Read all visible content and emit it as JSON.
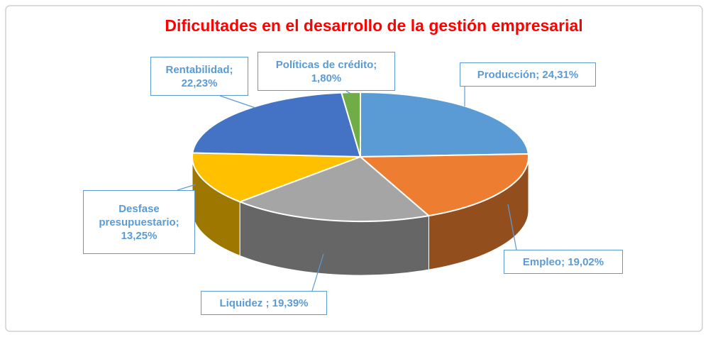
{
  "chart_data": {
    "type": "pie3d",
    "title": "Dificultades en el desarrollo de la gestión empresarial",
    "values": [
      24.31,
      19.02,
      19.39,
      13.25,
      22.23,
      1.8
    ],
    "value_labels": [
      "Producción; 24,31%",
      "Empleo; 19,02%",
      "Liquidez ; 19,39%",
      "Desfase presupuestario; 13,25%",
      "Rentabilidad; 22,23%",
      "Políticas de crédito; 1,80%"
    ],
    "colors": [
      "#5b9bd5",
      "#ed7d31",
      "#a5a5a5",
      "#ffc000",
      "#4472c4",
      "#70ad47"
    ]
  }
}
